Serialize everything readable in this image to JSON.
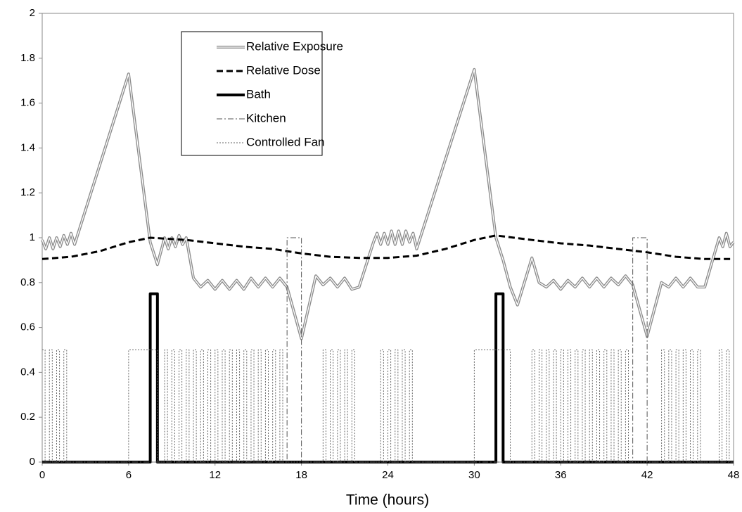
{
  "chart_data": {
    "type": "line",
    "xlabel": "Time (hours)",
    "xlim": [
      0,
      48
    ],
    "xticks": [
      0,
      6,
      12,
      18,
      24,
      30,
      36,
      42,
      48
    ],
    "ylim": [
      0,
      2
    ],
    "yticks": [
      0,
      0.2,
      0.4,
      0.6,
      0.8,
      1,
      1.2,
      1.4,
      1.6,
      1.8,
      2
    ],
    "grid": false,
    "legend": "upper center",
    "series": [
      {
        "name": "Relative Exposure",
        "color": "#8c8c8c",
        "style": "double",
        "x": [
          0,
          0.25,
          0.5,
          0.75,
          1,
          1.25,
          1.5,
          1.75,
          2,
          2.25,
          6,
          7.5,
          8,
          8.5,
          8.75,
          9,
          9.25,
          9.5,
          9.75,
          10,
          10.5,
          11,
          11.5,
          12,
          12.5,
          13,
          13.5,
          14,
          14.5,
          15,
          15.5,
          16,
          16.5,
          17,
          18,
          19,
          19.5,
          20,
          20.5,
          21,
          21.5,
          22,
          23,
          23.25,
          23.5,
          23.75,
          24,
          24.25,
          24.5,
          24.75,
          25,
          25.25,
          25.5,
          25.75,
          26,
          30,
          31.5,
          32,
          32.5,
          33,
          34,
          34.5,
          35,
          35.5,
          36,
          36.5,
          37,
          37.5,
          38,
          38.5,
          39,
          39.5,
          40,
          40.5,
          41,
          42,
          43,
          43.5,
          44,
          44.5,
          45,
          45.5,
          46,
          47,
          47.25,
          47.5,
          47.75,
          48
        ],
        "values": [
          0.99,
          0.95,
          1.0,
          0.95,
          1.0,
          0.96,
          1.01,
          0.97,
          1.02,
          0.97,
          1.73,
          0.98,
          0.88,
          1.0,
          0.95,
          1.0,
          0.96,
          1.01,
          0.97,
          1.0,
          0.82,
          0.78,
          0.81,
          0.77,
          0.81,
          0.77,
          0.81,
          0.77,
          0.82,
          0.78,
          0.82,
          0.78,
          0.82,
          0.78,
          0.55,
          0.83,
          0.79,
          0.82,
          0.78,
          0.82,
          0.77,
          0.78,
          0.98,
          1.02,
          0.97,
          1.02,
          0.97,
          1.03,
          0.97,
          1.03,
          0.97,
          1.03,
          0.98,
          1.02,
          0.95,
          1.75,
          1.0,
          0.9,
          0.78,
          0.7,
          0.91,
          0.8,
          0.78,
          0.81,
          0.77,
          0.81,
          0.78,
          0.82,
          0.78,
          0.82,
          0.78,
          0.82,
          0.79,
          0.83,
          0.79,
          0.56,
          0.8,
          0.78,
          0.82,
          0.78,
          0.82,
          0.78,
          0.78,
          1.0,
          0.96,
          1.02,
          0.96,
          0.98
        ]
      },
      {
        "name": "Relative Dose",
        "color": "#000000",
        "style": "dashed",
        "x": [
          0,
          2,
          4,
          6,
          7.5,
          10,
          12,
          14,
          16,
          18,
          20,
          22,
          24,
          26,
          28,
          30,
          31.5,
          34,
          36,
          38,
          40,
          42,
          44,
          46,
          48
        ],
        "values": [
          0.905,
          0.915,
          0.94,
          0.98,
          1.0,
          0.99,
          0.975,
          0.96,
          0.95,
          0.93,
          0.915,
          0.91,
          0.91,
          0.92,
          0.95,
          0.99,
          1.01,
          0.99,
          0.975,
          0.965,
          0.95,
          0.935,
          0.915,
          0.905,
          0.905
        ]
      },
      {
        "name": "Bath",
        "color": "#000000",
        "style": "thick",
        "step": true,
        "x": [
          0,
          7.5,
          8,
          31.5,
          32
        ],
        "values": [
          0,
          0.75,
          0,
          0.75,
          0
        ]
      },
      {
        "name": "Kitchen",
        "color": "#555555",
        "style": "dashdot",
        "step": true,
        "x": [
          0,
          17,
          18,
          41,
          42
        ],
        "values": [
          0,
          1,
          0,
          1,
          0
        ]
      },
      {
        "name": "Controlled Fan",
        "color": "#666666",
        "style": "dotted",
        "step": true,
        "x": [
          0,
          0.2,
          0.5,
          0.7,
          1,
          1.2,
          1.5,
          1.7,
          6,
          8,
          8.5,
          8.7,
          9,
          9.2,
          9.5,
          9.7,
          10,
          10.2,
          10.5,
          10.7,
          11,
          11.2,
          11.5,
          11.7,
          12,
          12.2,
          12.5,
          12.7,
          13,
          13.2,
          13.5,
          13.7,
          14,
          14.2,
          14.5,
          14.7,
          15,
          15.2,
          15.5,
          15.7,
          16,
          16.2,
          16.5,
          16.7,
          19.5,
          19.7,
          20,
          20.2,
          20.5,
          20.7,
          21,
          21.2,
          21.5,
          21.7,
          23.5,
          23.7,
          24,
          24.2,
          24.5,
          24.7,
          25,
          25.2,
          25.5,
          25.7,
          30,
          32.5,
          34,
          34.2,
          34.5,
          34.7,
          35,
          35.2,
          35.5,
          35.7,
          36,
          36.2,
          36.5,
          36.7,
          37,
          37.2,
          37.5,
          37.7,
          38,
          38.2,
          38.5,
          38.7,
          39,
          39.2,
          39.5,
          39.7,
          40,
          40.2,
          40.5,
          40.7,
          43,
          43.2,
          43.5,
          43.7,
          44,
          44.2,
          44.5,
          44.7,
          45,
          45.2,
          45.5,
          45.7,
          47,
          47.2,
          47.5,
          47.7
        ],
        "values": [
          0.5,
          0,
          0.5,
          0,
          0.5,
          0,
          0.5,
          0,
          0.5,
          0,
          0.5,
          0,
          0.5,
          0,
          0.5,
          0,
          0.5,
          0,
          0.5,
          0,
          0.5,
          0,
          0.5,
          0,
          0.5,
          0,
          0.5,
          0,
          0.5,
          0,
          0.5,
          0,
          0.5,
          0,
          0.5,
          0,
          0.5,
          0,
          0.5,
          0,
          0.5,
          0,
          0.5,
          0,
          0.5,
          0,
          0.5,
          0,
          0.5,
          0,
          0.5,
          0,
          0.5,
          0,
          0.5,
          0,
          0.5,
          0,
          0.5,
          0,
          0.5,
          0,
          0.5,
          0,
          0.5,
          0,
          0.5,
          0,
          0.5,
          0,
          0.5,
          0,
          0.5,
          0,
          0.5,
          0,
          0.5,
          0,
          0.5,
          0,
          0.5,
          0,
          0.5,
          0,
          0.5,
          0,
          0.5,
          0,
          0.5,
          0,
          0.5,
          0,
          0.5,
          0,
          0.5,
          0,
          0.5,
          0,
          0.5,
          0,
          0.5,
          0,
          0.5,
          0,
          0.5,
          0,
          0.5,
          0,
          0.5,
          0
        ]
      }
    ]
  }
}
